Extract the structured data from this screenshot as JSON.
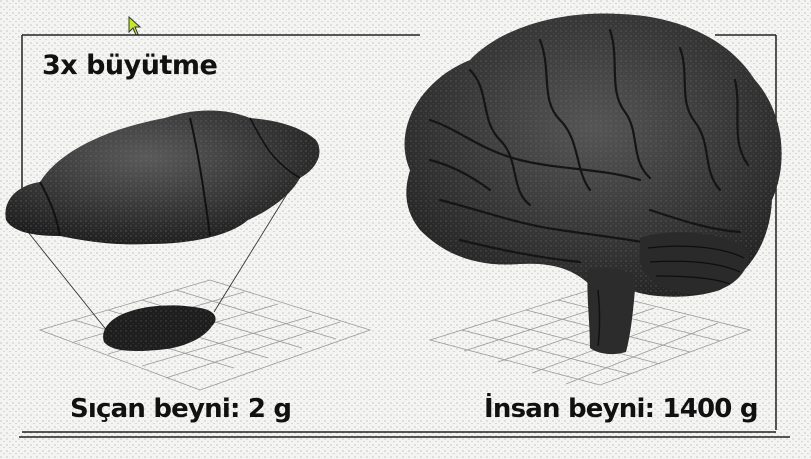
{
  "magnification_label": "3x büyütme",
  "rat_brain": {
    "label": "Sıçan beyni: 2 g"
  },
  "human_brain": {
    "label": "İnsan beyni: 1400 g"
  },
  "colors": {
    "background": "#f4f4f2",
    "ink": "#111111",
    "brain_fill": "#3b3b3b",
    "brain_shadow": "#1a1a1a",
    "grid": "#9a9a9a",
    "cursor": "#c6e82a"
  },
  "icons": [
    "mouse-cursor-icon"
  ]
}
